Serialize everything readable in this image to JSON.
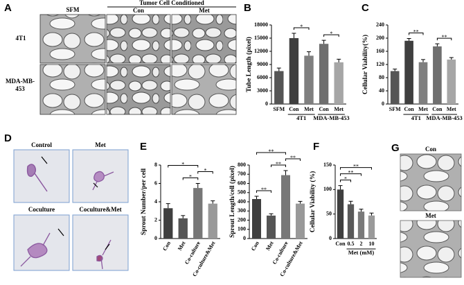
{
  "figure": {
    "letters": [
      "A",
      "B",
      "C",
      "D",
      "E",
      "F",
      "G"
    ],
    "panel_a": {
      "columns": [
        "SFM",
        "Con",
        "Met"
      ],
      "group": "Tumor Cell Conditioned",
      "rows": [
        "4T1",
        "MDA-MB-453"
      ]
    },
    "panel_d": {
      "labels": [
        "Control",
        "Met",
        "Coculture",
        "Coculture&Met"
      ]
    },
    "panel_g": {
      "labels": [
        "Con",
        "Met"
      ]
    }
  },
  "chart_data": [
    {
      "type": "bar",
      "y_label": "Tube Length (pixel)",
      "categories": [
        "SFM",
        "Con",
        "Met",
        "Con",
        "Met"
      ],
      "values": [
        7500,
        15000,
        11000,
        13700,
        9500
      ],
      "errors": [
        700,
        1100,
        900,
        800,
        700
      ],
      "colors": [
        "#555555",
        "#3f3f3f",
        "#7f7f7f",
        "#6f6f6f",
        "#a6a6a6"
      ],
      "ylim": [
        0,
        18000
      ],
      "yticks": [
        0,
        3000,
        6000,
        9000,
        12000,
        15000,
        18000
      ],
      "groups": [
        {
          "name": "4T1",
          "span": [
            1,
            2
          ]
        },
        {
          "name": "MDA-MB-453",
          "span": [
            3,
            4
          ]
        }
      ],
      "significance": [
        {
          "label": "*",
          "between": [
            1,
            2
          ]
        },
        {
          "label": "*",
          "between": [
            3,
            4
          ]
        }
      ]
    },
    {
      "type": "bar",
      "y_label": "Cellular Viability(%)",
      "categories": [
        "SFM",
        "Con",
        "Met",
        "Con",
        "Met"
      ],
      "values": [
        100,
        192,
        127,
        175,
        135
      ],
      "errors": [
        6,
        7,
        8,
        8,
        6
      ],
      "colors": [
        "#555555",
        "#3f3f3f",
        "#7f7f7f",
        "#6f6f6f",
        "#a6a6a6"
      ],
      "ylim": [
        0,
        240
      ],
      "yticks": [
        0,
        40,
        80,
        120,
        160,
        200,
        240
      ],
      "groups": [
        {
          "name": "4T1",
          "span": [
            1,
            2
          ]
        },
        {
          "name": "MDA-MB-453",
          "span": [
            3,
            4
          ]
        }
      ],
      "significance": [
        {
          "label": "**",
          "between": [
            1,
            2
          ]
        },
        {
          "label": "**",
          "between": [
            3,
            4
          ]
        }
      ]
    },
    {
      "type": "bar",
      "y_label": "Sprout Number/per cell",
      "categories": [
        "Con",
        "Met",
        "Co-culture",
        "Co-culture&Met"
      ],
      "values": [
        3.3,
        2.2,
        5.5,
        3.8
      ],
      "errors": [
        0.5,
        0.3,
        0.5,
        0.3
      ],
      "colors": [
        "#3f3f3f",
        "#555555",
        "#777777",
        "#999999"
      ],
      "ylim": [
        0,
        8
      ],
      "yticks": [
        0,
        2,
        4,
        6,
        8
      ],
      "significance": [
        {
          "label": "*",
          "between": [
            1,
            2
          ]
        },
        {
          "label": "*",
          "between": [
            2,
            3
          ]
        },
        {
          "label": "*",
          "between": [
            0,
            2
          ]
        }
      ]
    },
    {
      "type": "bar",
      "y_label": "Sprout Length/cell (pixel)",
      "categories": [
        "Con",
        "Met",
        "Co-culture",
        "Co-culture&Met"
      ],
      "values": [
        430,
        250,
        690,
        380
      ],
      "errors": [
        30,
        20,
        50,
        25
      ],
      "colors": [
        "#3f3f3f",
        "#555555",
        "#777777",
        "#999999"
      ],
      "ylim": [
        0,
        800
      ],
      "yticks": [
        0,
        100,
        200,
        300,
        400,
        500,
        600,
        700,
        800
      ],
      "significance": [
        {
          "label": "**",
          "between": [
            0,
            1
          ]
        },
        {
          "label": "**",
          "between": [
            1,
            2
          ]
        },
        {
          "label": "**",
          "between": [
            2,
            3
          ]
        },
        {
          "label": "**",
          "between": [
            0,
            2
          ]
        }
      ]
    },
    {
      "type": "bar",
      "y_label": "Cellular Viability (%)",
      "categories": [
        "Con",
        "0.5",
        "2",
        "10"
      ],
      "values": [
        100,
        70,
        55,
        47
      ],
      "errors": [
        8,
        6,
        5,
        5
      ],
      "colors": [
        "#3f3f3f",
        "#595959",
        "#7a7a7a",
        "#9a9a9a"
      ],
      "ylim": [
        0,
        150
      ],
      "yticks": [
        0,
        50,
        100,
        150
      ],
      "groups": [
        {
          "name": "Met (mM)",
          "span": [
            1,
            3
          ]
        }
      ],
      "significance": [
        {
          "label": "*",
          "between": [
            0,
            1
          ]
        },
        {
          "label": "**",
          "between": [
            0,
            2
          ]
        },
        {
          "label": "**",
          "between": [
            0,
            3
          ]
        }
      ]
    }
  ]
}
